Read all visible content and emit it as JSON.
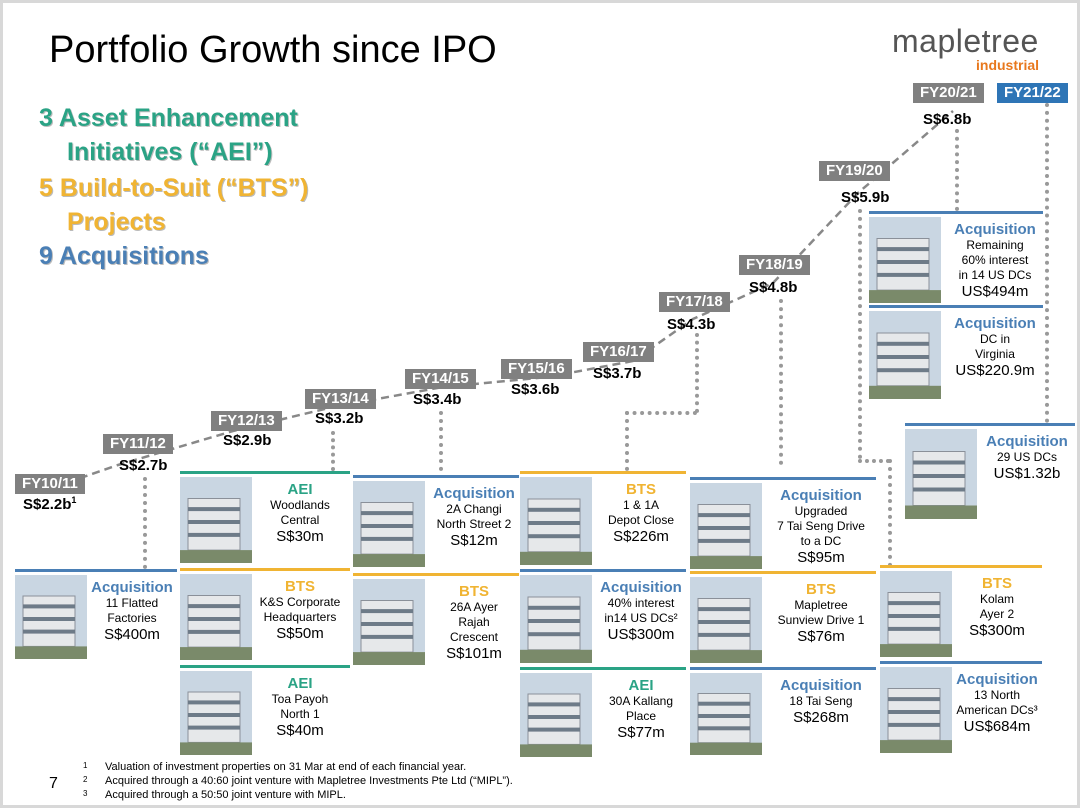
{
  "title": "Portfolio Growth since IPO",
  "logo": {
    "main": "mapletree",
    "sub": "industrial"
  },
  "legend": {
    "aei_line1": "3 Asset Enhancement",
    "aei_line2": "Initiatives (“AEI”)",
    "bts_line1": "5 Build-to-Suit (“BTS”)",
    "bts_line2": "Projects",
    "acq": "9 Acquisitions"
  },
  "colors": {
    "aei": "#2aa385",
    "bts": "#f0b433",
    "acquisition": "#4a7fb5",
    "fy_badge": "#808080",
    "fy_badge_current": "#2e75b6"
  },
  "timeline": [
    {
      "fy": "FY10/11",
      "value": "S$2.2b",
      "sup": "1"
    },
    {
      "fy": "FY11/12",
      "value": "S$2.7b"
    },
    {
      "fy": "FY12/13",
      "value": "S$2.9b"
    },
    {
      "fy": "FY13/14",
      "value": "S$3.2b"
    },
    {
      "fy": "FY14/15",
      "value": "S$3.4b"
    },
    {
      "fy": "FY15/16",
      "value": "S$3.6b"
    },
    {
      "fy": "FY16/17",
      "value": "S$3.7b"
    },
    {
      "fy": "FY17/18",
      "value": "S$4.3b"
    },
    {
      "fy": "FY18/19",
      "value": "S$4.8b"
    },
    {
      "fy": "FY19/20",
      "value": "S$5.9b"
    },
    {
      "fy": "FY20/21",
      "value": "S$6.8b"
    },
    {
      "fy": "FY21/22",
      "value": "",
      "current": true
    }
  ],
  "cards": [
    {
      "type": "Acquisition",
      "kind": "acq",
      "desc": [
        "11 Flatted",
        "Factories"
      ],
      "amount": "S$400m",
      "photo": "factory-photo"
    },
    {
      "type": "AEI",
      "kind": "aei",
      "desc": [
        "Woodlands",
        "Central"
      ],
      "amount": "S$30m",
      "photo": "building-photo"
    },
    {
      "type": "BTS",
      "kind": "bts",
      "desc": [
        "K&S Corporate",
        "Headquarters"
      ],
      "amount": "S$50m",
      "photo": "building-photo"
    },
    {
      "type": "AEI",
      "kind": "aei",
      "desc": [
        "Toa Payoh",
        "North 1"
      ],
      "amount": "S$40m",
      "photo": "building-photo"
    },
    {
      "type": "Acquisition",
      "kind": "acq",
      "desc": [
        "2A Changi",
        "North Street 2"
      ],
      "amount": "S$12m",
      "photo": "building-photo"
    },
    {
      "type": "BTS",
      "kind": "bts",
      "desc": [
        "26A Ayer",
        "Rajah",
        "Crescent"
      ],
      "amount": "S$101m",
      "photo": "building-photo"
    },
    {
      "type": "BTS",
      "kind": "bts",
      "desc": [
        "1 & 1A",
        "Depot Close"
      ],
      "amount": "S$226m",
      "photo": "building-photo"
    },
    {
      "type": "Acquisition",
      "kind": "acq",
      "desc": [
        "40% interest",
        "in14 US DCs²"
      ],
      "amount": "US$300m",
      "photo": "data-centre-photo"
    },
    {
      "type": "AEI",
      "kind": "aei",
      "desc": [
        "30A Kallang",
        "Place"
      ],
      "amount": "S$77m",
      "photo": "building-photo"
    },
    {
      "type": "Acquisition",
      "kind": "acq",
      "desc": [
        "Upgraded",
        "7 Tai Seng Drive",
        "to a DC"
      ],
      "amount": "S$95m",
      "photo": "data-centre-photo"
    },
    {
      "type": "BTS",
      "kind": "bts",
      "desc": [
        "Mapletree",
        "Sunview Drive 1"
      ],
      "amount": "S$76m",
      "photo": "building-photo"
    },
    {
      "type": "Acquisition",
      "kind": "acq",
      "desc": [
        "18 Tai Seng"
      ],
      "amount": "S$268m",
      "photo": "building-photo"
    },
    {
      "type": "BTS",
      "kind": "bts",
      "desc": [
        "Kolam",
        "Ayer 2"
      ],
      "amount": "S$300m",
      "photo": "building-photo"
    },
    {
      "type": "Acquisition",
      "kind": "acq",
      "desc": [
        "13 North",
        "American DCs³"
      ],
      "amount": "US$684m",
      "photo": "data-centre-photo"
    },
    {
      "type": "Acquisition",
      "kind": "acq",
      "desc": [
        "Remaining",
        "60% interest",
        "in 14 US DCs"
      ],
      "amount": "US$494m",
      "photo": "data-centre-photo"
    },
    {
      "type": "Acquisition",
      "kind": "acq",
      "desc": [
        "DC in",
        "Virginia"
      ],
      "amount": "US$220.9m",
      "photo": "data-centre-photo"
    },
    {
      "type": "Acquisition",
      "kind": "acq",
      "desc": [
        "29 US DCs"
      ],
      "amount": "US$1.32b",
      "photo": "data-centre-photo"
    }
  ],
  "page_number": "7",
  "footnotes": [
    {
      "num": "1",
      "text": "Valuation of investment properties on 31 Mar at end of each financial year."
    },
    {
      "num": "2",
      "text": "Acquired through a 40:60 joint venture with Mapletree Investments Pte Ltd (“MIPL”)."
    },
    {
      "num": "3",
      "text": "Acquired through a 50:50 joint venture with MIPL."
    }
  ]
}
